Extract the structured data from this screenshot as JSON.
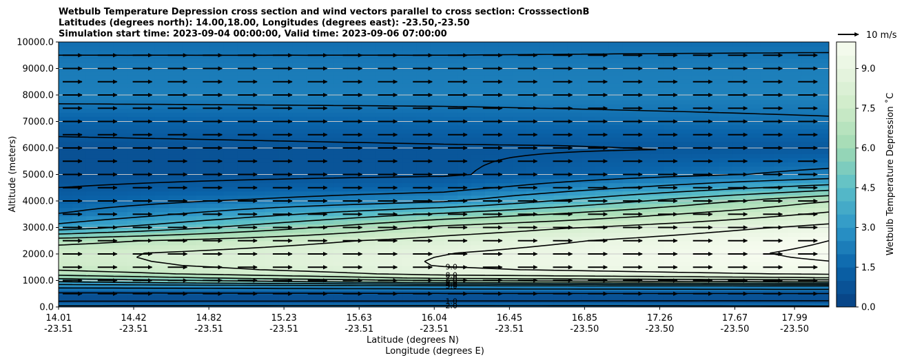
{
  "chart_data": {
    "type": "contourf",
    "title_lines": [
      "Wetbulb Temperature Depression cross section and wind vectors parallel to cross section: CrosssectionB",
      "Latitudes (degrees north): 14.00,18.00, Longitudes (degrees east): -23.50,-23.50",
      "Simulation start time: 2023-09-04 00:00:00, Valid time: 2023-09-06 07:00:00"
    ],
    "ylabel": "Altitude (meters)",
    "xlabel": "Latitude (degrees N)",
    "xlabel2": "Longitude (degrees E)",
    "ylim": [
      0,
      10000
    ],
    "y_ticks": [
      "0.0",
      "1000.0",
      "2000.0",
      "3000.0",
      "4000.0",
      "5000.0",
      "6000.0",
      "7000.0",
      "8000.0",
      "9000.0",
      "10000.0"
    ],
    "x_ticks": [
      {
        "lat": "14.01",
        "lon": "-23.51",
        "pos": 0.0
      },
      {
        "lat": "14.42",
        "lon": "-23.51",
        "pos": 0.0975
      },
      {
        "lat": "14.82",
        "lon": "-23.51",
        "pos": 0.1951
      },
      {
        "lat": "15.23",
        "lon": "-23.51",
        "pos": 0.2926
      },
      {
        "lat": "15.63",
        "lon": "-23.51",
        "pos": 0.3902
      },
      {
        "lat": "16.04",
        "lon": "-23.51",
        "pos": 0.4877
      },
      {
        "lat": "16.45",
        "lon": "-23.51",
        "pos": 0.5853
      },
      {
        "lat": "16.85",
        "lon": "-23.50",
        "pos": 0.6828
      },
      {
        "lat": "17.26",
        "lon": "-23.50",
        "pos": 0.7804
      },
      {
        "lat": "17.67",
        "lon": "-23.50",
        "pos": 0.8779
      },
      {
        "lat": "17.99",
        "lon": "-23.50",
        "pos": 0.9554
      }
    ],
    "grid": "horizontal",
    "colorbar": {
      "label": "Wetbulb Temperature Depression ˚C",
      "range": [
        0,
        10
      ],
      "ticks": [
        "0.0",
        "1.5",
        "3.0",
        "4.5",
        "6.0",
        "7.5",
        "9.0"
      ],
      "colormap": "GnBu_r"
    },
    "quiver_key": "10 m/s",
    "contour_levels": [
      1.0,
      2.0,
      3.0,
      4.0,
      5.0,
      6.0,
      7.0,
      8.0,
      9.0,
      10.0
    ],
    "profiles": [
      {
        "x": 0.0,
        "altitudes": [
          0,
          250,
          500,
          800,
          1000,
          1300,
          1600,
          2000,
          2500,
          3000,
          3500,
          4000,
          4500,
          5000,
          6000,
          7000,
          8000,
          9000,
          10000
        ],
        "values": [
          2.3,
          0.6,
          0.7,
          2.5,
          4.5,
          6.8,
          7.6,
          7.8,
          6.6,
          3.4,
          2.0,
          1.4,
          1.0,
          0.7,
          0.7,
          1.4,
          2.3,
          2.2,
          1.8
        ]
      },
      {
        "x": 0.5,
        "altitudes": [
          0,
          250,
          500,
          800,
          1000,
          1300,
          1600,
          2000,
          2500,
          3000,
          3500,
          4000,
          4500,
          5000,
          6000,
          7000,
          8000,
          9000,
          10000
        ],
        "values": [
          2.4,
          0.6,
          0.8,
          2.8,
          6.5,
          8.7,
          9.1,
          9.0,
          8.4,
          7.3,
          5.2,
          2.8,
          1.6,
          0.9,
          0.9,
          1.6,
          2.3,
          2.2,
          1.8
        ]
      },
      {
        "x": 1.0,
        "altitudes": [
          0,
          250,
          500,
          800,
          1000,
          1300,
          1600,
          2000,
          2500,
          3000,
          3500,
          4000,
          4500,
          5000,
          6000,
          7000,
          8000,
          9000,
          10000
        ],
        "values": [
          2.2,
          0.7,
          0.8,
          3.0,
          7.2,
          9.5,
          9.9,
          10.2,
          10.0,
          9.3,
          8.2,
          7.0,
          4.5,
          2.3,
          1.0,
          1.9,
          2.4,
          2.3,
          1.8
        ]
      }
    ],
    "wind": {
      "direction": "parallel to cross section, eastward",
      "speed_approx_ms": 10
    }
  }
}
